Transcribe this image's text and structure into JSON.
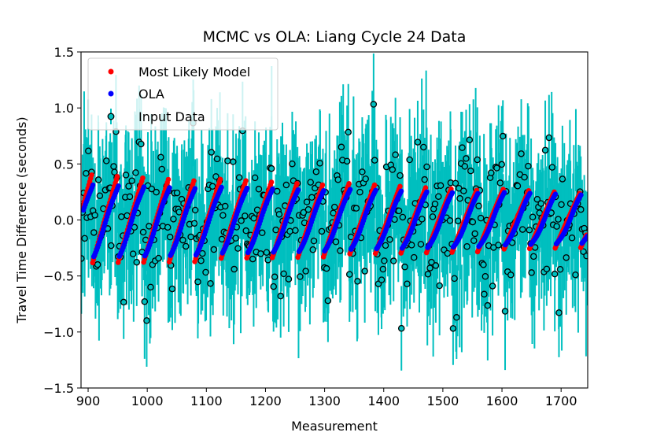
{
  "chart_data": {
    "type": "scatter",
    "title": "MCMC vs OLA: Liang Cycle 24 Data",
    "xlabel": "Measurement",
    "ylabel": "Travel Time Difference (seconds)",
    "xlim": [
      888,
      1745
    ],
    "ylim": [
      -1.5,
      1.5
    ],
    "xticks": [
      900,
      1000,
      1100,
      1200,
      1300,
      1400,
      1500,
      1600,
      1700
    ],
    "yticks": [
      -1.5,
      -1.0,
      -0.5,
      0.0,
      0.5,
      1.0,
      1.5
    ],
    "ytick_labels": [
      "−1.5",
      "−1.0",
      "−0.5",
      "0.0",
      "0.5",
      "1.0",
      "1.5"
    ],
    "legend_position": "top-left",
    "series": [
      {
        "name": "Most Likely Model",
        "color": "#ff0000",
        "marker": "dot",
        "x_range": [
          888,
          1745
        ],
        "period": 43.5,
        "amplitude_start": 0.41,
        "amplitude_end": 0.25
      },
      {
        "name": "OLA",
        "color": "#0000ff",
        "marker": "dot",
        "x_range": [
          888,
          1745
        ],
        "period": 43.5,
        "amplitude_start": 0.33,
        "amplitude_end": 0.22
      },
      {
        "name": "Input Data",
        "color": "#00bfbf",
        "marker": "circle-errorbar",
        "point_count": 880,
        "x_range": [
          888,
          1745
        ],
        "y_range": [
          -1.37,
          1.38
        ],
        "error_half_width": 0.42
      }
    ]
  }
}
